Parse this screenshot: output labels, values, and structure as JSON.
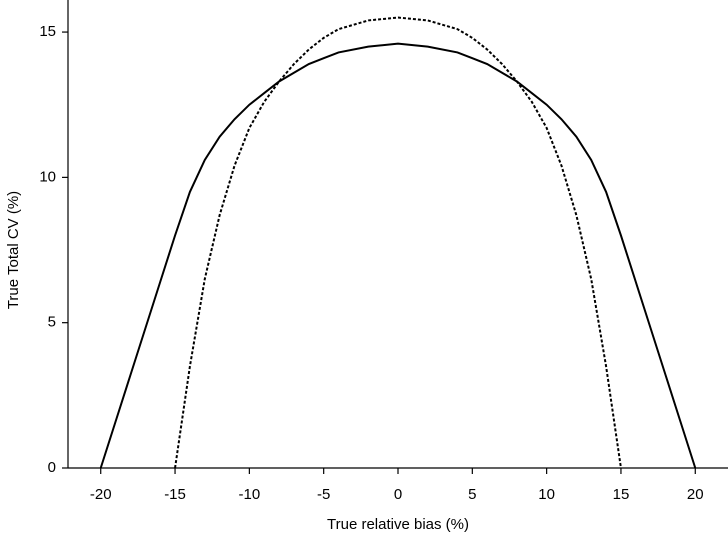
{
  "chart_data": {
    "type": "line",
    "xlabel": "True relative bias (%)",
    "ylabel": "True Total CV (%)",
    "x": [
      -20,
      -19,
      -18,
      -17,
      -16,
      -15,
      -14,
      -13,
      -12,
      -11,
      -10,
      -9,
      -8,
      -7,
      -6,
      -5,
      -4,
      -2,
      0,
      2,
      4,
      5,
      6,
      7,
      8,
      9,
      10,
      11,
      12,
      13,
      14,
      15,
      16,
      17,
      18,
      19,
      20
    ],
    "series": [
      {
        "color": "#000000",
        "style": "solid",
        "values": [
          0,
          1.6,
          3.2,
          4.8,
          6.4,
          8.0,
          9.5,
          10.6,
          11.4,
          12.0,
          12.5,
          12.9,
          13.3,
          13.6,
          13.9,
          14.1,
          14.3,
          14.5,
          14.6,
          14.5,
          14.3,
          14.1,
          13.9,
          13.6,
          13.3,
          12.9,
          12.5,
          12.0,
          11.4,
          10.6,
          9.5,
          8.0,
          6.4,
          4.8,
          3.2,
          1.6,
          0
        ]
      },
      {
        "color": "#000000",
        "style": "dotted",
        "values": [
          null,
          null,
          null,
          null,
          null,
          0,
          3.5,
          6.5,
          8.7,
          10.4,
          11.7,
          12.6,
          13.3,
          13.9,
          14.4,
          14.8,
          15.1,
          15.4,
          15.5,
          15.4,
          15.1,
          14.8,
          14.4,
          13.9,
          13.3,
          12.6,
          11.7,
          10.4,
          8.7,
          6.5,
          3.5,
          0,
          null,
          null,
          null,
          null,
          null
        ]
      }
    ],
    "xlim": [
      -22,
      22
    ],
    "ylim": [
      0,
      16
    ],
    "xticks": [
      -20,
      -15,
      -10,
      -5,
      0,
      5,
      10,
      15,
      20
    ],
    "yticks": [
      0,
      5,
      10,
      15
    ],
    "grid": false
  }
}
